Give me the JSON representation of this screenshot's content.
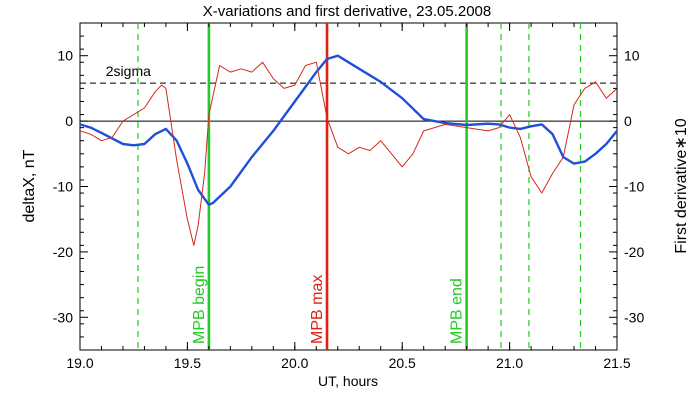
{
  "chart_data": {
    "type": "line",
    "title": "X-variations and first derivative, 23.05.2008",
    "xlabel": "UT, hours",
    "ylabel_left": "deltaX, nT",
    "ylabel_right": "First derivative∗10",
    "xlim": [
      19.0,
      21.5
    ],
    "ylim": [
      -35,
      15
    ],
    "x_ticks": [
      19.0,
      19.5,
      20.0,
      20.5,
      21.0,
      21.5
    ],
    "x_tick_labels": [
      "19.0",
      "19.5",
      "20.0",
      "20.5",
      "21.0",
      "21.5"
    ],
    "y_ticks": [
      10,
      0,
      -10,
      -20,
      -30
    ],
    "y_tick_labels": [
      "10",
      "0",
      "-10",
      "-20",
      "-30"
    ],
    "colors": {
      "deltaX": "#1f50d8",
      "derivative": "#d42a1a",
      "markers": "#22cc22",
      "max": "#e02010",
      "reference": "#000000"
    },
    "reference_lines": [
      {
        "label": "2sigma",
        "value": 5.8,
        "style": "dashed"
      },
      {
        "label": "",
        "value": 0,
        "style": "solid"
      }
    ],
    "vertical_markers": [
      {
        "x": 19.6,
        "label": "MPB begin",
        "style": "solid",
        "color": "#22cc22"
      },
      {
        "x": 20.15,
        "label": "MPB max",
        "style": "solid",
        "color": "#e02010"
      },
      {
        "x": 20.8,
        "label": "MPB end",
        "style": "solid",
        "color": "#22cc22"
      },
      {
        "x": 19.27,
        "label": "",
        "style": "dashed",
        "color": "#22cc22"
      },
      {
        "x": 20.96,
        "label": "",
        "style": "dashed",
        "color": "#22cc22"
      },
      {
        "x": 21.09,
        "label": "",
        "style": "dashed",
        "color": "#22cc22"
      },
      {
        "x": 21.33,
        "label": "",
        "style": "dashed",
        "color": "#22cc22"
      }
    ],
    "series": [
      {
        "key": "deltaX",
        "axis": "left",
        "x": [
          19.0,
          19.05,
          19.1,
          19.2,
          19.25,
          19.3,
          19.35,
          19.4,
          19.45,
          19.5,
          19.55,
          19.6,
          19.62,
          19.7,
          19.8,
          19.9,
          20.0,
          20.1,
          20.15,
          20.2,
          20.3,
          20.4,
          20.5,
          20.6,
          20.7,
          20.8,
          20.9,
          20.95,
          21.0,
          21.05,
          21.1,
          21.15,
          21.2,
          21.25,
          21.3,
          21.35,
          21.4,
          21.45,
          21.5
        ],
        "y": [
          -0.5,
          -1.0,
          -1.8,
          -3.5,
          -3.7,
          -3.5,
          -2.0,
          -1.2,
          -3.0,
          -6.5,
          -10.5,
          -12.8,
          -12.5,
          -10.0,
          -5.5,
          -1.5,
          3.0,
          7.5,
          9.5,
          10.0,
          8.0,
          6.0,
          3.5,
          0.3,
          -0.3,
          -0.6,
          -0.4,
          -0.5,
          -1.0,
          -1.2,
          -0.8,
          -0.5,
          -2.0,
          -5.5,
          -6.5,
          -6.2,
          -5.0,
          -3.5,
          -1.5
        ]
      },
      {
        "key": "derivative",
        "axis": "right",
        "x": [
          19.0,
          19.05,
          19.1,
          19.15,
          19.2,
          19.25,
          19.3,
          19.35,
          19.38,
          19.4,
          19.45,
          19.5,
          19.53,
          19.55,
          19.58,
          19.6,
          19.65,
          19.7,
          19.75,
          19.8,
          19.85,
          19.9,
          19.95,
          20.0,
          20.05,
          20.1,
          20.15,
          20.2,
          20.25,
          20.3,
          20.35,
          20.4,
          20.45,
          20.5,
          20.55,
          20.6,
          20.7,
          20.8,
          20.9,
          20.95,
          21.0,
          21.05,
          21.1,
          21.15,
          21.2,
          21.25,
          21.3,
          21.35,
          21.4,
          21.45,
          21.5
        ],
        "y": [
          -1.5,
          -2.0,
          -3.0,
          -2.5,
          0.0,
          1.0,
          2.0,
          4.5,
          5.5,
          5.0,
          -6.0,
          -15.0,
          -19.0,
          -16.0,
          -8.0,
          1.0,
          8.5,
          7.5,
          8.0,
          7.5,
          9.0,
          6.5,
          5.0,
          5.5,
          8.5,
          9.0,
          0.5,
          -4.0,
          -5.0,
          -4.0,
          -4.5,
          -3.0,
          -5.0,
          -7.0,
          -5.0,
          -1.5,
          -0.5,
          -1.0,
          -1.5,
          -1.0,
          1.0,
          -2.5,
          -8.5,
          -11.0,
          -8.0,
          -5.5,
          2.5,
          5.0,
          6.0,
          3.5,
          5.0
        ]
      }
    ],
    "grid": false,
    "legend": "none"
  }
}
